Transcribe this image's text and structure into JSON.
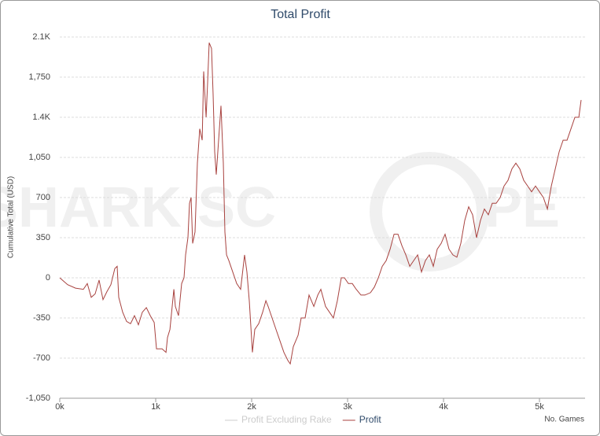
{
  "chart_data": {
    "type": "line",
    "title": "Total Profit",
    "watermark": [
      "SHARK SC",
      "PE"
    ],
    "y_label": "Cumulative Total (USD)",
    "x_label": "No. Games",
    "grid": true,
    "xlim": [
      0,
      5475
    ],
    "ylim": [
      -1050,
      2100
    ],
    "xticks": [
      {
        "value": 0,
        "label": "0k"
      },
      {
        "value": 1000,
        "label": "1k"
      },
      {
        "value": 2000,
        "label": "2k"
      },
      {
        "value": 3000,
        "label": "3k"
      },
      {
        "value": 4000,
        "label": "4k"
      },
      {
        "value": 5000,
        "label": "5k"
      }
    ],
    "yticks": [
      {
        "value": -1050,
        "label": "-1,050"
      },
      -700,
      -350,
      0,
      350,
      700,
      {
        "value": 1050,
        "label": "1,050"
      },
      {
        "value": 1400,
        "label": "1.4K"
      },
      {
        "value": 1750,
        "label": "1,750"
      },
      {
        "value": 2100,
        "label": "2.1K"
      }
    ],
    "x": [
      0,
      82,
      164,
      246,
      287,
      328,
      369,
      410,
      451,
      492,
      533,
      574,
      598,
      615,
      656,
      697,
      738,
      779,
      820,
      861,
      902,
      943,
      984,
      1008,
      1066,
      1107,
      1123,
      1148,
      1189,
      1205,
      1238,
      1270,
      1295,
      1311,
      1336,
      1352,
      1369,
      1385,
      1410,
      1434,
      1459,
      1484,
      1500,
      1525,
      1541,
      1557,
      1582,
      1598,
      1615,
      1631,
      1656,
      1680,
      1705,
      1721,
      1738,
      1762,
      1803,
      1844,
      1885,
      1926,
      1951,
      1975,
      2008,
      2033,
      2074,
      2115,
      2148,
      2172,
      2213,
      2254,
      2295,
      2336,
      2377,
      2402,
      2434,
      2484,
      2516,
      2557,
      2598,
      2648,
      2689,
      2721,
      2770,
      2811,
      2852,
      2893,
      2934,
      2967,
      3008,
      3049,
      3090,
      3139,
      3180,
      3238,
      3279,
      3320,
      3361,
      3402,
      3443,
      3484,
      3525,
      3566,
      3607,
      3648,
      3689,
      3730,
      3770,
      3811,
      3852,
      3893,
      3934,
      3975,
      4016,
      4057,
      4098,
      4139,
      4180,
      4221,
      4262,
      4303,
      4344,
      4385,
      4426,
      4467,
      4508,
      4549,
      4590,
      4631,
      4672,
      4713,
      4754,
      4795,
      4836,
      4877,
      4918,
      4959,
      5000,
      5041,
      5082,
      5123,
      5164,
      5205,
      5246,
      5287,
      5328,
      5369,
      5410,
      5434
    ],
    "series": [
      {
        "name": "Profit Excluding Rake",
        "color": "#cccccc",
        "visible": false
      },
      {
        "name": "Profit",
        "color": "#a8423f",
        "visible": true,
        "values": [
          0,
          -60,
          -90,
          -100,
          -50,
          -170,
          -140,
          -20,
          -190,
          -120,
          -60,
          80,
          100,
          -170,
          -300,
          -380,
          -400,
          -330,
          -410,
          -300,
          -260,
          -330,
          -390,
          -620,
          -620,
          -650,
          -520,
          -450,
          -100,
          -250,
          -330,
          -50,
          0,
          200,
          350,
          650,
          700,
          300,
          400,
          1000,
          1300,
          1200,
          1800,
          1400,
          1700,
          2050,
          2000,
          1600,
          1100,
          900,
          1200,
          1500,
          1000,
          400,
          200,
          150,
          50,
          -50,
          -100,
          200,
          50,
          -200,
          -650,
          -450,
          -400,
          -300,
          -200,
          -250,
          -350,
          -450,
          -550,
          -650,
          -720,
          -750,
          -600,
          -500,
          -350,
          -350,
          -150,
          -250,
          -150,
          -100,
          -250,
          -300,
          -350,
          -200,
          0,
          0,
          -50,
          -50,
          -100,
          -150,
          -150,
          -130,
          -80,
          0,
          100,
          150,
          250,
          380,
          380,
          280,
          200,
          100,
          150,
          200,
          50,
          150,
          200,
          100,
          250,
          300,
          380,
          250,
          200,
          180,
          300,
          500,
          620,
          550,
          350,
          500,
          600,
          550,
          650,
          650,
          700,
          800,
          850,
          950,
          1000,
          950,
          850,
          800,
          750,
          800,
          750,
          700,
          600,
          800,
          950,
          1100,
          1200,
          1200,
          1300,
          1400,
          1400,
          1550
        ]
      }
    ]
  }
}
